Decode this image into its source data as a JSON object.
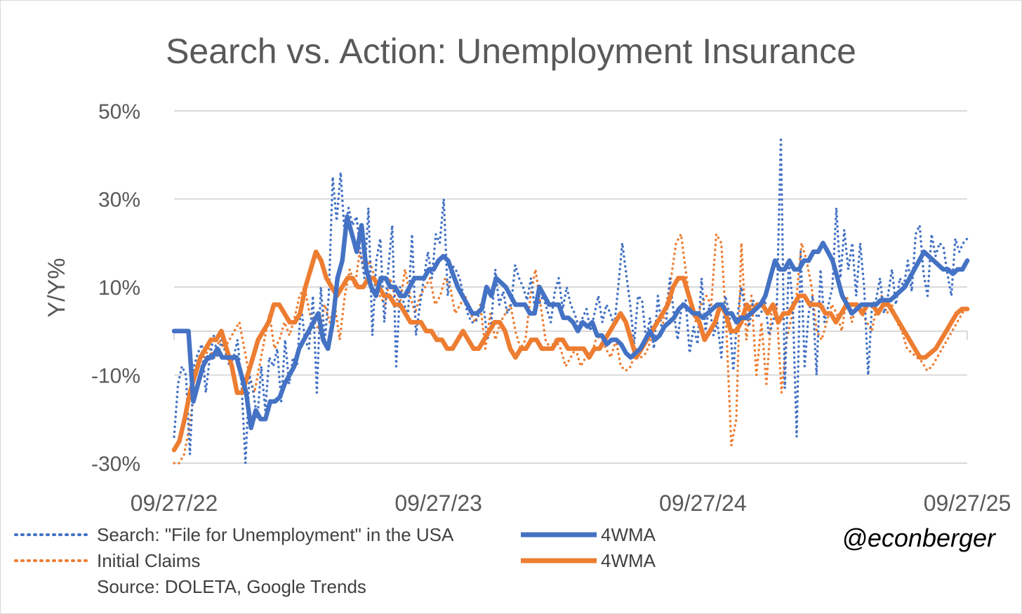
{
  "chart_data": {
    "type": "line",
    "title": "Search vs. Action: Unemployment Insurance",
    "ylabel": "Y/Y%",
    "xlabel": "",
    "ylim": [
      -30,
      50
    ],
    "y_ticks": [
      "50%",
      "30%",
      "10%",
      "-10%",
      "-30%"
    ],
    "y_tick_values": [
      50,
      30,
      10,
      -10,
      -30
    ],
    "x_ticks": [
      "09/27/22",
      "09/27/23",
      "09/27/24",
      "09/27/25"
    ],
    "x_range_weeks": [
      0,
      156
    ],
    "source": "Source: DOLETA, Google Trends",
    "handle": "@econberger",
    "series": [
      {
        "name": "Search: \"File for Unemployment\" in the USA",
        "style": "dotted",
        "color": "#4472c4",
        "values": [
          -24,
          -12,
          -8,
          -10,
          -28,
          -8,
          -5,
          -3,
          -14,
          -6,
          -1,
          -6,
          -2,
          -5,
          -8,
          -6,
          -2,
          -12,
          -30,
          -10,
          -14,
          -20,
          -8,
          -18,
          -6,
          -8,
          -4,
          -16,
          -2,
          -12,
          -6,
          -8,
          6,
          -2,
          -4,
          8,
          -14,
          10,
          -2,
          8,
          35,
          25,
          36,
          22,
          28,
          24,
          26,
          18,
          12,
          28,
          -1,
          16,
          21,
          2,
          14,
          24,
          -8,
          10,
          6,
          4,
          22,
          -1,
          6,
          12,
          18,
          12,
          22,
          20,
          30,
          8,
          15,
          14,
          12,
          8,
          4,
          2,
          2,
          4,
          6,
          -2,
          2,
          14,
          6,
          9,
          4,
          6,
          15,
          12,
          10,
          7,
          12,
          5,
          6,
          8,
          5,
          2,
          9,
          12,
          5,
          10,
          6,
          4,
          1,
          3,
          5,
          0,
          4,
          8,
          2,
          6,
          4,
          1,
          10,
          20,
          13,
          6,
          -3,
          8,
          7,
          -2,
          3,
          -4,
          8,
          0,
          1,
          12,
          4,
          -2,
          6,
          7,
          -5,
          1,
          -3,
          12,
          0,
          6,
          -1,
          2,
          -6,
          8,
          4,
          -9,
          3,
          10,
          5,
          1,
          7,
          3,
          4,
          7,
          -1,
          2,
          6,
          44,
          -13,
          16,
          6,
          -24,
          18,
          -8,
          4,
          8,
          -10,
          14,
          2,
          6,
          10,
          28,
          12,
          23,
          14,
          20,
          8,
          20,
          10,
          -10,
          6,
          7,
          12,
          4,
          8,
          14,
          6,
          12,
          10,
          16,
          9,
          22,
          24,
          13,
          8,
          22,
          17,
          20,
          19,
          13,
          8,
          21,
          18,
          20,
          21
        ]
      },
      {
        "name": "4WMA",
        "style": "solid",
        "color": "#4472c4",
        "values": [
          0,
          0,
          0,
          0,
          -16,
          -12,
          -8,
          -6,
          -6,
          -4,
          -6,
          -6,
          -6,
          -6,
          -10,
          -14,
          -22,
          -18,
          -20,
          -20,
          -16,
          -16,
          -15,
          -12,
          -10,
          -8,
          -4,
          -2,
          0,
          2,
          4,
          -2,
          -4,
          2,
          12,
          16,
          26,
          22,
          18,
          24,
          14,
          10,
          8,
          12,
          12,
          10,
          10,
          8,
          8,
          10,
          12,
          12,
          12,
          14,
          14,
          16,
          17,
          16,
          13,
          10,
          8,
          6,
          4,
          4,
          5,
          10,
          8,
          12,
          11,
          10,
          8,
          6,
          6,
          6,
          4,
          4,
          10,
          8,
          6,
          6,
          6,
          3,
          3,
          2,
          0,
          2,
          1,
          2,
          -1,
          -1,
          -3,
          -2,
          -2,
          -3,
          -5,
          -6,
          -5,
          -4,
          -2,
          0,
          -2,
          -1,
          1,
          2,
          3,
          5,
          6,
          5,
          4,
          4,
          3,
          4,
          5,
          6,
          6,
          4,
          4,
          2,
          3,
          3,
          4,
          5,
          6,
          8,
          12,
          16,
          14,
          14,
          16,
          14,
          14,
          16,
          16,
          18,
          18,
          20,
          18,
          16,
          12,
          8,
          6,
          4,
          5,
          6,
          6,
          6,
          6,
          7,
          7,
          7,
          8,
          9,
          10,
          12,
          14,
          16,
          18,
          17,
          16,
          15,
          14,
          14,
          13,
          14,
          14,
          16
        ]
      },
      {
        "name": "Initial Claims",
        "style": "dotted",
        "color": "#ed7d31",
        "values": [
          -30,
          -30,
          -28,
          -22,
          -14,
          -10,
          -6,
          -4,
          -6,
          -2,
          -4,
          -2,
          0,
          2,
          -4,
          -10,
          -14,
          -8,
          -2,
          4,
          -4,
          -2,
          2,
          -1,
          3,
          8,
          10,
          4,
          2,
          0,
          6,
          2,
          6,
          -2,
          8,
          14,
          10,
          18,
          14,
          16,
          12,
          8,
          6,
          12,
          8,
          6,
          14,
          8,
          4,
          8,
          10,
          12,
          6,
          8,
          12,
          10,
          4,
          6,
          8,
          4,
          2,
          6,
          -4,
          4,
          -2,
          2,
          4,
          6,
          0,
          -4,
          -2,
          8,
          14,
          6,
          -2,
          -4,
          -2,
          -4,
          -8,
          -6,
          -4,
          -8,
          -6,
          -6,
          -2,
          -1,
          -4,
          -6,
          -2,
          -8,
          -9,
          -8,
          -4,
          -6,
          -5,
          -2,
          -1,
          -1,
          6,
          12,
          20,
          22,
          13,
          5,
          2,
          6,
          8,
          6,
          22,
          20,
          1,
          -26,
          -20,
          20,
          -2,
          8,
          -10,
          2,
          -12,
          4,
          6,
          -14,
          -2,
          3,
          8,
          20,
          16,
          10,
          0,
          -2,
          2,
          6,
          4,
          0,
          8,
          2,
          6,
          4,
          2,
          0,
          6,
          8,
          4,
          6,
          2,
          0,
          -4,
          -5,
          -6,
          -7,
          -9,
          -8,
          -6,
          -4,
          -2,
          0,
          2,
          4,
          6
        ]
      },
      {
        "name": "4WMA",
        "style": "solid",
        "color": "#ed7d31",
        "values": [
          -27,
          -25,
          -20,
          -14,
          -10,
          -6,
          -4,
          -2,
          -2,
          0,
          -4,
          -8,
          -14,
          -14,
          -10,
          -6,
          -2,
          0,
          2,
          6,
          6,
          4,
          2,
          2,
          4,
          10,
          14,
          18,
          16,
          12,
          10,
          8,
          10,
          12,
          12,
          10,
          10,
          12,
          12,
          10,
          8,
          8,
          6,
          6,
          4,
          2,
          2,
          2,
          0,
          0,
          -2,
          -2,
          -4,
          -4,
          -2,
          0,
          -2,
          -4,
          -4,
          -2,
          0,
          2,
          2,
          0,
          -4,
          -6,
          -4,
          -4,
          -2,
          -2,
          -4,
          -4,
          -4,
          -2,
          -2,
          -4,
          -4,
          -4,
          -4,
          -6,
          -4,
          -4,
          -2,
          0,
          2,
          4,
          2,
          -2,
          -6,
          -4,
          -2,
          0,
          2,
          4,
          6,
          10,
          12,
          12,
          8,
          4,
          2,
          -2,
          0,
          2,
          6,
          4,
          0,
          0,
          2,
          6,
          4,
          6,
          6,
          4,
          6,
          2,
          4,
          4,
          6,
          8,
          8,
          6,
          6,
          6,
          4,
          4,
          2,
          4,
          6,
          6,
          6,
          4,
          6,
          6,
          4,
          6,
          6,
          4,
          2,
          0,
          -2,
          -4,
          -6,
          -6,
          -5,
          -4,
          -2,
          0,
          2,
          4,
          5,
          5
        ]
      }
    ]
  }
}
